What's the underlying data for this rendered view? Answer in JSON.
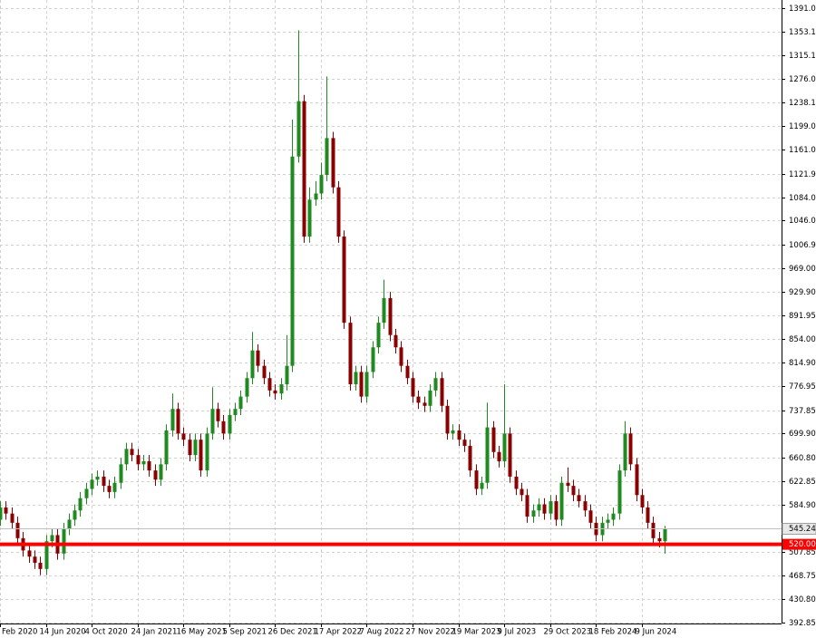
{
  "chart_data": {
    "type": "candlestick",
    "categories": [
      "Feb 2020",
      null,
      null,
      null,
      null,
      null,
      null,
      null,
      "14 Jun 2020",
      null,
      null,
      null,
      null,
      null,
      null,
      null,
      "4 Oct 2020",
      null,
      null,
      null,
      null,
      null,
      null,
      null,
      "24 Jan 2021",
      null,
      null,
      null,
      null,
      null,
      null,
      null,
      "16 May 2021",
      null,
      null,
      null,
      null,
      null,
      null,
      null,
      "5 Sep 2021",
      null,
      null,
      null,
      null,
      null,
      null,
      null,
      "26 Dec 2021",
      null,
      null,
      null,
      null,
      null,
      null,
      null,
      "17 Apr 2022",
      null,
      null,
      null,
      null,
      null,
      null,
      null,
      "7 Aug 2022",
      null,
      null,
      null,
      null,
      null,
      null,
      null,
      "27 Nov 2022",
      null,
      null,
      null,
      null,
      null,
      null,
      null,
      "19 Mar 2023",
      null,
      null,
      null,
      null,
      null,
      null,
      null,
      "9 Jul 2023",
      null,
      null,
      null,
      null,
      null,
      null,
      null,
      "29 Oct 2023",
      null,
      null,
      null,
      null,
      null,
      null,
      null,
      "18 Feb 2024",
      null,
      null,
      null,
      null,
      null,
      null,
      null,
      "9 Jun 2024",
      null,
      null,
      null,
      null
    ],
    "open": [
      560,
      580,
      570,
      555,
      530,
      510,
      500,
      490,
      480,
      525,
      535,
      505,
      545,
      560,
      575,
      595,
      610,
      625,
      630,
      615,
      605,
      620,
      650,
      675,
      665,
      650,
      655,
      640,
      625,
      650,
      705,
      740,
      700,
      690,
      665,
      690,
      640,
      700,
      740,
      720,
      700,
      730,
      740,
      760,
      790,
      835,
      810,
      790,
      770,
      765,
      780,
      810,
      1150,
      1240,
      1020,
      1080,
      1090,
      1120,
      1180,
      1100,
      1020,
      880,
      780,
      800,
      760,
      800,
      840,
      880,
      920,
      860,
      840,
      810,
      790,
      760,
      750,
      745,
      770,
      790,
      745,
      700,
      705,
      690,
      680,
      640,
      610,
      620,
      710,
      670,
      655,
      700,
      630,
      610,
      600,
      565,
      575,
      585,
      570,
      590,
      560,
      620,
      615,
      600,
      590,
      575,
      555,
      535,
      555,
      560,
      570,
      640,
      700,
      650,
      600,
      580,
      555,
      530,
      525
    ],
    "high": [
      590,
      590,
      580,
      565,
      540,
      520,
      510,
      500,
      535,
      545,
      545,
      555,
      570,
      585,
      605,
      620,
      635,
      640,
      640,
      625,
      630,
      660,
      685,
      685,
      675,
      665,
      665,
      650,
      660,
      715,
      765,
      750,
      710,
      700,
      700,
      700,
      710,
      775,
      750,
      730,
      740,
      750,
      770,
      800,
      865,
      845,
      820,
      800,
      780,
      790,
      860,
      1210,
      1355,
      1250,
      1100,
      1110,
      1140,
      1280,
      1190,
      1110,
      1030,
      890,
      810,
      810,
      810,
      850,
      890,
      950,
      930,
      870,
      850,
      820,
      800,
      770,
      760,
      780,
      800,
      800,
      755,
      715,
      715,
      700,
      690,
      650,
      630,
      750,
      720,
      680,
      780,
      710,
      640,
      620,
      610,
      585,
      595,
      595,
      600,
      600,
      630,
      645,
      625,
      610,
      600,
      585,
      565,
      565,
      570,
      580,
      650,
      720,
      710,
      660,
      610,
      590,
      565,
      540,
      550
    ],
    "low": [
      550,
      560,
      545,
      520,
      500,
      490,
      480,
      470,
      470,
      515,
      495,
      495,
      535,
      550,
      565,
      585,
      600,
      615,
      605,
      595,
      595,
      610,
      640,
      655,
      640,
      640,
      630,
      615,
      615,
      640,
      695,
      690,
      680,
      655,
      655,
      630,
      630,
      690,
      710,
      690,
      690,
      720,
      730,
      750,
      780,
      800,
      780,
      760,
      755,
      755,
      770,
      800,
      1140,
      1010,
      1010,
      1070,
      1080,
      1110,
      1090,
      1010,
      870,
      770,
      770,
      750,
      750,
      790,
      830,
      870,
      850,
      830,
      800,
      780,
      750,
      740,
      735,
      735,
      760,
      735,
      690,
      690,
      680,
      670,
      630,
      600,
      600,
      610,
      660,
      645,
      645,
      620,
      600,
      590,
      555,
      555,
      565,
      560,
      560,
      550,
      550,
      605,
      590,
      580,
      565,
      545,
      525,
      525,
      545,
      550,
      560,
      630,
      640,
      590,
      570,
      545,
      520,
      515,
      505
    ],
    "close": [
      580,
      570,
      555,
      530,
      510,
      500,
      490,
      480,
      525,
      535,
      505,
      545,
      560,
      575,
      595,
      610,
      625,
      630,
      615,
      605,
      620,
      650,
      675,
      665,
      650,
      655,
      640,
      625,
      650,
      705,
      740,
      700,
      690,
      665,
      690,
      640,
      700,
      740,
      720,
      700,
      730,
      740,
      760,
      790,
      835,
      810,
      790,
      770,
      765,
      780,
      810,
      1150,
      1240,
      1020,
      1080,
      1090,
      1120,
      1180,
      1100,
      1020,
      880,
      780,
      800,
      760,
      800,
      840,
      880,
      920,
      860,
      840,
      810,
      790,
      760,
      750,
      745,
      770,
      790,
      745,
      700,
      705,
      690,
      680,
      640,
      610,
      620,
      710,
      670,
      655,
      700,
      630,
      610,
      600,
      565,
      575,
      585,
      570,
      590,
      560,
      620,
      615,
      600,
      590,
      575,
      555,
      535,
      555,
      560,
      570,
      640,
      700,
      650,
      600,
      580,
      555,
      530,
      525,
      545.24
    ],
    "up_color": "#1f8a1f",
    "down_color": "#8b0000",
    "ylim": [
      392.85,
      1391.05
    ],
    "yticks": [
      1391.05,
      {
        "value": 1353.1,
        "label": "1353.10"
      },
      1315.15,
      1276.05,
      {
        "value": 1238.1,
        "label": "1238.10"
      },
      {
        "value": 1199,
        "label": "1199.00"
      },
      1161.05,
      1121.95,
      {
        "value": 1084,
        "label": "1084.00"
      },
      1046.05,
      1006.95,
      {
        "value": 969,
        "label": "969.00"
      },
      {
        "value": 929.9,
        "label": "929.90"
      },
      891.95,
      {
        "value": 854,
        "label": "854.00"
      },
      {
        "value": 814.9,
        "label": "814.90"
      },
      776.95,
      737.85,
      {
        "value": 699.9,
        "label": "699.90"
      },
      {
        "value": 660.8,
        "label": "660.80"
      },
      622.85,
      {
        "value": 584.9,
        "label": "584.90"
      },
      507.85,
      468.75,
      {
        "value": 430.8,
        "label": "430.80"
      },
      392.85
    ],
    "grid": true,
    "current_price": 545.24,
    "level": {
      "value": 520,
      "label": "520.00",
      "color": "#ff0000"
    }
  }
}
